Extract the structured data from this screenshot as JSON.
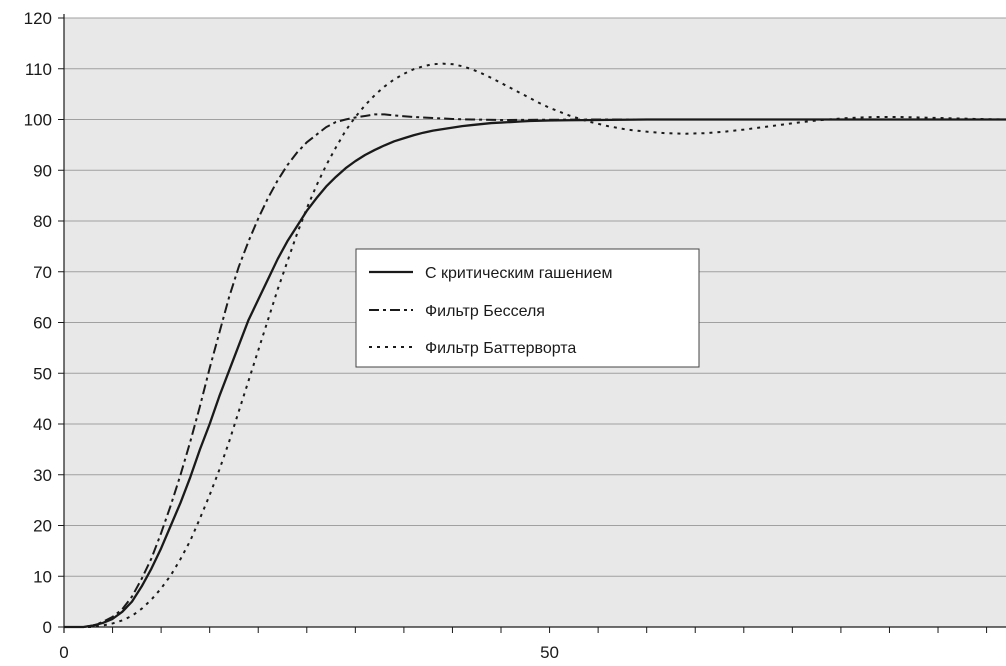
{
  "chart_data": {
    "type": "line",
    "title": "",
    "xlabel": "",
    "ylabel": "",
    "xlim": [
      0,
      97
    ],
    "ylim": [
      0,
      120
    ],
    "x_tick_labels": [
      {
        "x": 0,
        "label": "0"
      },
      {
        "x": 50,
        "label": "50"
      }
    ],
    "x_minor_ticks": [
      5,
      10,
      15,
      20,
      25,
      30,
      35,
      40,
      45,
      55,
      60,
      65,
      70,
      75,
      80,
      85,
      90,
      95
    ],
    "y_ticks": [
      0,
      10,
      20,
      30,
      40,
      50,
      60,
      70,
      80,
      90,
      100,
      110,
      120
    ],
    "grid": "horizontal",
    "legend_position": "center",
    "colors": {
      "background": "#e8e8e8",
      "line": "#1a1a1a",
      "grid": "#a0a0a0"
    },
    "series": [
      {
        "name": "С критическим гашением",
        "style": "solid",
        "x": [
          0,
          2,
          3,
          4,
          5,
          6,
          7,
          8,
          9,
          10,
          11,
          12,
          13,
          14,
          15,
          16,
          17,
          18,
          19,
          20,
          21,
          22,
          23,
          24,
          25,
          26,
          27,
          28,
          29,
          30,
          31,
          32,
          33,
          34,
          35,
          36,
          37,
          38,
          39,
          40,
          41,
          42,
          43,
          44,
          45,
          46,
          47,
          48,
          50,
          52,
          55,
          60,
          65,
          70,
          80,
          90,
          97
        ],
        "y": [
          0,
          0,
          0.3,
          0.8,
          1.6,
          3,
          5,
          8,
          11.5,
          15.5,
          20,
          24.5,
          29.5,
          35,
          40,
          45.5,
          50.5,
          55.5,
          60.5,
          64.5,
          68.5,
          72.5,
          76,
          79,
          82,
          84.5,
          86.8,
          88.7,
          90.4,
          91.8,
          93,
          94,
          94.9,
          95.7,
          96.3,
          96.9,
          97.4,
          97.8,
          98.1,
          98.4,
          98.7,
          98.9,
          99.1,
          99.3,
          99.4,
          99.5,
          99.6,
          99.7,
          99.8,
          99.85,
          99.9,
          100,
          100,
          100,
          100,
          100,
          100
        ]
      },
      {
        "name": "Фильтр Бесселя",
        "style": "dash-dot",
        "x": [
          0,
          2,
          3,
          4,
          5,
          6,
          7,
          8,
          9,
          10,
          11,
          12,
          13,
          14,
          15,
          16,
          17,
          18,
          19,
          20,
          21,
          22,
          23,
          24,
          25,
          26,
          27,
          28,
          29,
          30,
          31,
          32,
          33,
          34,
          36,
          38,
          40,
          42,
          45,
          50,
          55,
          60,
          70,
          80,
          97
        ],
        "y": [
          0,
          0,
          0.3,
          1,
          2,
          3.5,
          6,
          9.5,
          13.5,
          18.5,
          24,
          30,
          36.5,
          43.5,
          51,
          58,
          65,
          71,
          76,
          80.5,
          84.5,
          88,
          91,
          93.5,
          95.5,
          97,
          98.5,
          99.5,
          100,
          100.4,
          100.7,
          101,
          101,
          100.8,
          100.5,
          100.3,
          100.1,
          100,
          99.9,
          99.95,
          100,
          100,
          100,
          100,
          100
        ]
      },
      {
        "name": "Фильтр Баттерворта",
        "style": "dotted",
        "x": [
          0,
          3,
          4,
          5,
          6,
          7,
          8,
          9,
          10,
          11,
          12,
          13,
          14,
          15,
          16,
          17,
          18,
          19,
          20,
          21,
          22,
          23,
          24,
          25,
          26,
          27,
          28,
          29,
          30,
          31,
          32,
          33,
          34,
          35,
          36,
          37,
          38,
          39,
          40,
          41,
          42,
          43,
          44,
          45,
          46,
          47,
          48,
          49,
          50,
          52,
          54,
          56,
          58,
          60,
          62,
          64,
          66,
          68,
          70,
          72,
          74,
          76,
          78,
          80,
          82,
          84,
          86,
          88,
          90,
          92,
          94,
          97
        ],
        "y": [
          0,
          0,
          0.3,
          0.7,
          1.3,
          2.2,
          3.6,
          5.4,
          7.6,
          10.2,
          13.4,
          17,
          21.4,
          26,
          31,
          36.5,
          42.5,
          48.5,
          54.5,
          60.5,
          66.5,
          72,
          77.5,
          82.5,
          87,
          91,
          94.5,
          97.8,
          100.5,
          102.8,
          104.8,
          106.5,
          107.9,
          109,
          109.9,
          110.5,
          110.9,
          111,
          110.9,
          110.5,
          109.9,
          109.1,
          108.2,
          107.2,
          106.2,
          105.2,
          104.2,
          103.2,
          102.3,
          100.8,
          99.6,
          98.7,
          98,
          97.6,
          97.3,
          97.2,
          97.3,
          97.6,
          98,
          98.5,
          99,
          99.5,
          99.9,
          100.2,
          100.4,
          100.5,
          100.5,
          100.4,
          100.3,
          100.2,
          100.1,
          100
        ]
      }
    ]
  }
}
